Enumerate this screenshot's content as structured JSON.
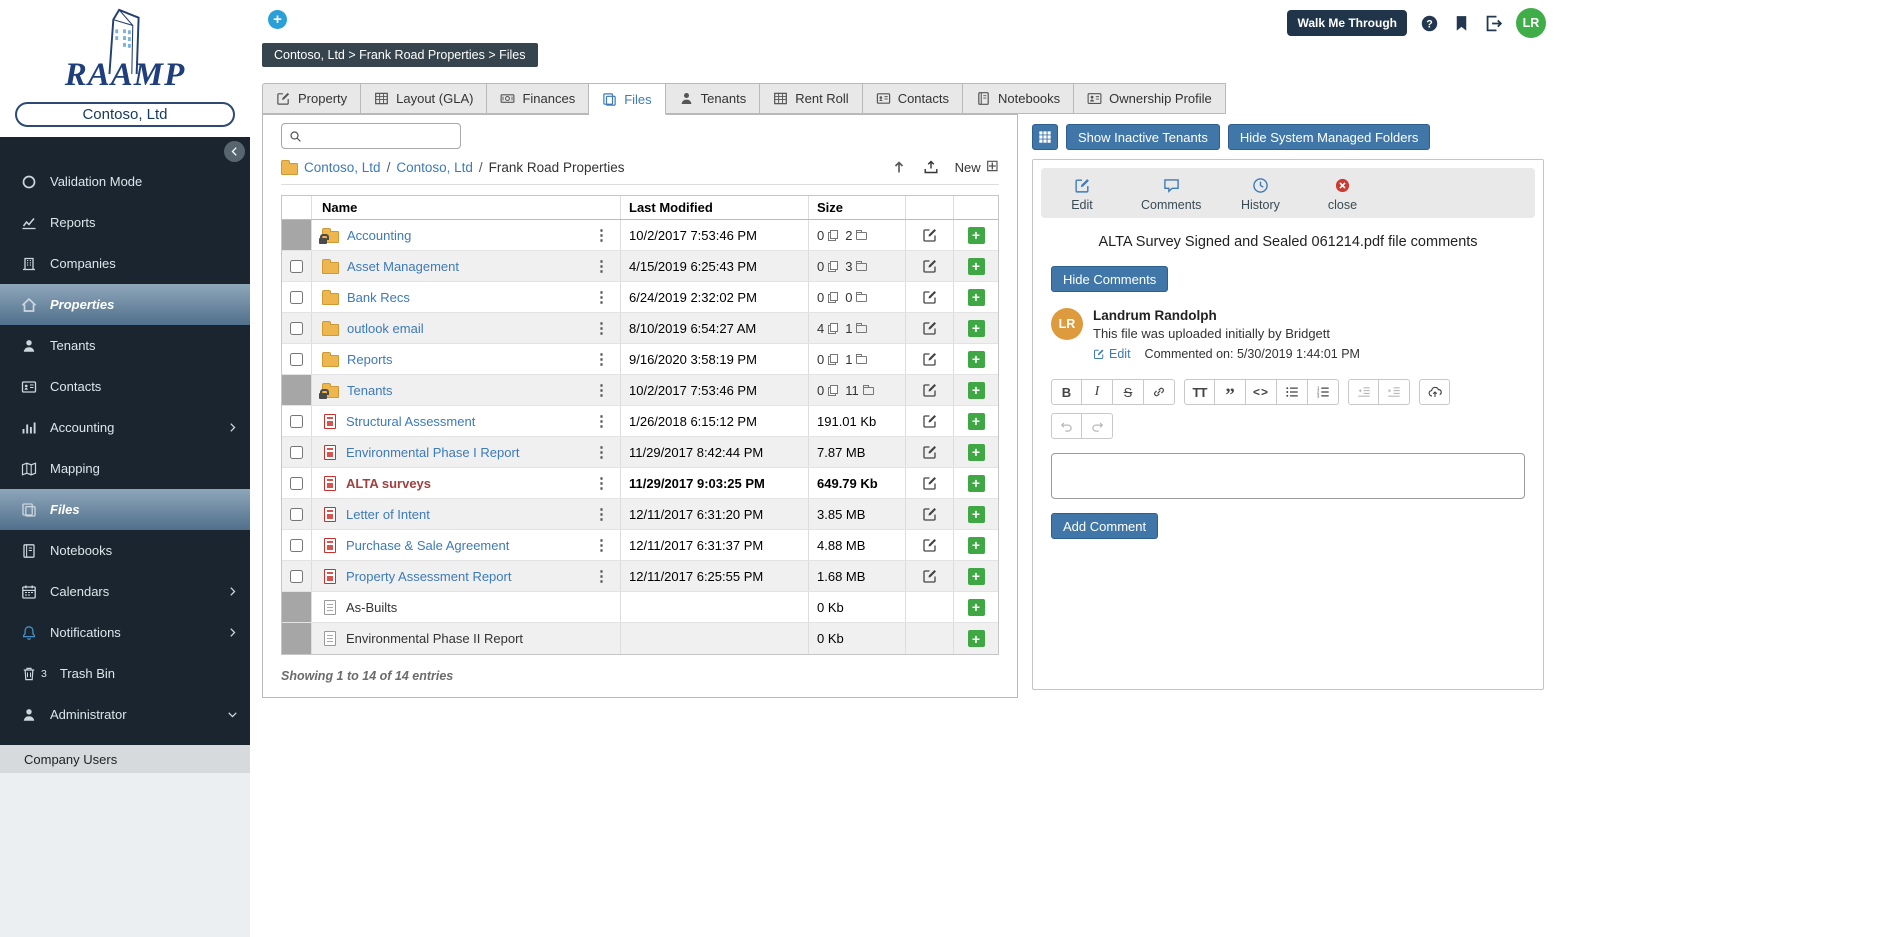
{
  "app": {
    "logo": "RAAMP",
    "company": "Contoso, Ltd",
    "walk_me_through": "Walk Me Through",
    "avatar_initials": "LR"
  },
  "sidebar": {
    "items": [
      {
        "label": "Validation Mode",
        "icon": "circle-icon"
      },
      {
        "label": "Reports",
        "icon": "line-chart-icon"
      },
      {
        "label": "Companies",
        "icon": "building-icon"
      },
      {
        "label": "Properties",
        "icon": "home-icon",
        "active": true
      },
      {
        "label": "Tenants",
        "icon": "person-icon"
      },
      {
        "label": "Contacts",
        "icon": "contact-card-icon"
      },
      {
        "label": "Accounting",
        "icon": "bar-chart-icon",
        "chevron": "right"
      },
      {
        "label": "Mapping",
        "icon": "map-icon"
      },
      {
        "label": "Files",
        "icon": "files-icon",
        "active": true
      },
      {
        "label": "Notebooks",
        "icon": "notebook-icon"
      },
      {
        "label": "Calendars",
        "icon": "calendar-icon",
        "chevron": "right"
      },
      {
        "label": "Notifications",
        "icon": "bell-icon",
        "chevron": "right",
        "icon_color": "#4a90c4"
      },
      {
        "label": "Trash Bin",
        "icon": "trash-icon",
        "badge": "3"
      },
      {
        "label": "Administrator",
        "icon": "person-icon",
        "chevron": "down"
      }
    ],
    "footer": "Company Users"
  },
  "breadcrumb": "Contoso, Ltd > Frank Road Properties > Files",
  "tabs": [
    {
      "label": "Property",
      "icon": "pencil-square-icon"
    },
    {
      "label": "Layout (GLA)",
      "icon": "table-icon"
    },
    {
      "label": "Finances",
      "icon": "money-icon"
    },
    {
      "label": "Files",
      "icon": "files-icon",
      "active": true
    },
    {
      "label": "Tenants",
      "icon": "person-icon"
    },
    {
      "label": "Rent Roll",
      "icon": "table-icon"
    },
    {
      "label": "Contacts",
      "icon": "contact-card-icon"
    },
    {
      "label": "Notebooks",
      "icon": "notebook-icon"
    },
    {
      "label": "Ownership Profile",
      "icon": "person-card-icon"
    }
  ],
  "file_panel": {
    "search": {
      "placeholder": ""
    },
    "path": {
      "links": [
        "Contoso, Ltd",
        "Contoso, Ltd"
      ],
      "current": "Frank Road Properties",
      "separator": "/"
    },
    "toolbar": {
      "new_label": "New"
    },
    "table": {
      "columns": [
        "Name",
        "Last Modified",
        "Size"
      ],
      "rows": [
        {
          "name": "Accounting",
          "type": "folder-locked",
          "modified": "10/2/2017 7:53:46 PM",
          "files_count": "0",
          "folders_count": "2",
          "checkbox": false,
          "menu": true,
          "edit": true
        },
        {
          "name": "Asset Management",
          "type": "folder",
          "modified": "4/15/2019 6:25:43 PM",
          "files_count": "0",
          "folders_count": "3",
          "checkbox": true,
          "menu": true,
          "edit": true
        },
        {
          "name": "Bank Recs",
          "type": "folder",
          "modified": "6/24/2019 2:32:02 PM",
          "files_count": "0",
          "folders_count": "0",
          "checkbox": true,
          "menu": true,
          "edit": true
        },
        {
          "name": "outlook email",
          "type": "folder",
          "modified": "8/10/2019 6:54:27 AM",
          "files_count": "4",
          "folders_count": "1",
          "checkbox": true,
          "menu": true,
          "edit": true
        },
        {
          "name": "Reports",
          "type": "folder",
          "modified": "9/16/2020 3:58:19 PM",
          "files_count": "0",
          "folders_count": "1",
          "checkbox": true,
          "menu": true,
          "edit": true
        },
        {
          "name": "Tenants",
          "type": "folder-locked",
          "modified": "10/2/2017 7:53:46 PM",
          "files_count": "0",
          "folders_count": "11",
          "checkbox": false,
          "menu": true,
          "edit": true
        },
        {
          "name": "Structural Assessment",
          "type": "pdf",
          "modified": "1/26/2018 6:15:12 PM",
          "size": "191.01 Kb",
          "checkbox": true,
          "menu": true,
          "edit": true
        },
        {
          "name": "Environmental Phase I Report",
          "type": "pdf",
          "modified": "11/29/2017 8:42:44 PM",
          "size": "7.87 MB",
          "checkbox": true,
          "menu": true,
          "edit": true
        },
        {
          "name": "ALTA surveys",
          "type": "pdf",
          "modified": "11/29/2017 9:03:25 PM",
          "size": "649.79 Kb",
          "checkbox": true,
          "menu": true,
          "edit": true,
          "selected": true
        },
        {
          "name": "Letter of Intent",
          "type": "pdf",
          "modified": "12/11/2017 6:31:20 PM",
          "size": "3.85 MB",
          "checkbox": true,
          "menu": true,
          "edit": true
        },
        {
          "name": "Purchase & Sale Agreement",
          "type": "pdf",
          "modified": "12/11/2017 6:31:37 PM",
          "size": "4.88 MB",
          "checkbox": true,
          "menu": true,
          "edit": true
        },
        {
          "name": "Property Assessment Report",
          "type": "pdf",
          "modified": "12/11/2017 6:25:55 PM",
          "size": "1.68 MB",
          "checkbox": true,
          "menu": true,
          "edit": true
        },
        {
          "name": "As-Builts",
          "type": "file",
          "modified": "",
          "size": "0 Kb",
          "checkbox": false,
          "menu": false,
          "edit": false,
          "link": false
        },
        {
          "name": "Environmental Phase II Report",
          "type": "file",
          "modified": "",
          "size": "0 Kb",
          "checkbox": false,
          "menu": false,
          "edit": false,
          "link": false
        }
      ]
    },
    "footer": "Showing 1 to 14 of 14 entries"
  },
  "comments_panel": {
    "show_inactive_label": "Show Inactive Tenants",
    "hide_system_label": "Hide System Managed Folders",
    "actions": [
      {
        "label": "Edit",
        "icon": "pencil-square-icon"
      },
      {
        "label": "Comments",
        "icon": "comment-icon"
      },
      {
        "label": "History",
        "icon": "clock-icon"
      },
      {
        "label": "close",
        "icon": "close-circle-icon"
      }
    ],
    "title": "ALTA Survey Signed and Sealed 061214.pdf file comments",
    "hide_comments_label": "Hide Comments",
    "comment": {
      "initials": "LR",
      "author": "Landrum Randolph",
      "body": "This file was uploaded initially by Bridgett",
      "edit_label": "Edit",
      "timestamp": "Commented on: 5/30/2019 1:44:01 PM"
    },
    "editor": {
      "buttons": [
        {
          "name": "bold",
          "text": "B"
        },
        {
          "name": "italic",
          "text": "I"
        },
        {
          "name": "strikethrough",
          "text": "S"
        },
        {
          "name": "link",
          "icon": "link-icon"
        },
        {
          "name": "font-size",
          "text": "TT"
        },
        {
          "name": "blockquote",
          "text": "”"
        },
        {
          "name": "code",
          "text": "<>"
        },
        {
          "name": "unordered-list",
          "icon": "ul-icon"
        },
        {
          "name": "ordered-list",
          "icon": "ol-icon"
        },
        {
          "name": "outdent",
          "icon": "outdent-icon",
          "disabled": true
        },
        {
          "name": "indent",
          "icon": "indent-icon",
          "disabled": true
        },
        {
          "name": "upload",
          "icon": "cloud-icon"
        }
      ],
      "history_buttons": [
        {
          "name": "undo",
          "icon": "undo-icon",
          "disabled": true
        },
        {
          "name": "redo",
          "icon": "redo-icon",
          "disabled": true
        }
      ]
    },
    "add_comment_label": "Add Comment"
  },
  "colors": {
    "accent_blue": "#4077a8",
    "link_blue": "#3d7ab8",
    "green_add": "#3fa845",
    "pdf_red": "#d9534f",
    "folder_yellow": "#eeb64f",
    "sidebar_bg": "#1a252f",
    "avatar_green": "#3fae49",
    "comment_avatar_orange": "#dd9b3e",
    "selected_file_red": "#a04040"
  }
}
